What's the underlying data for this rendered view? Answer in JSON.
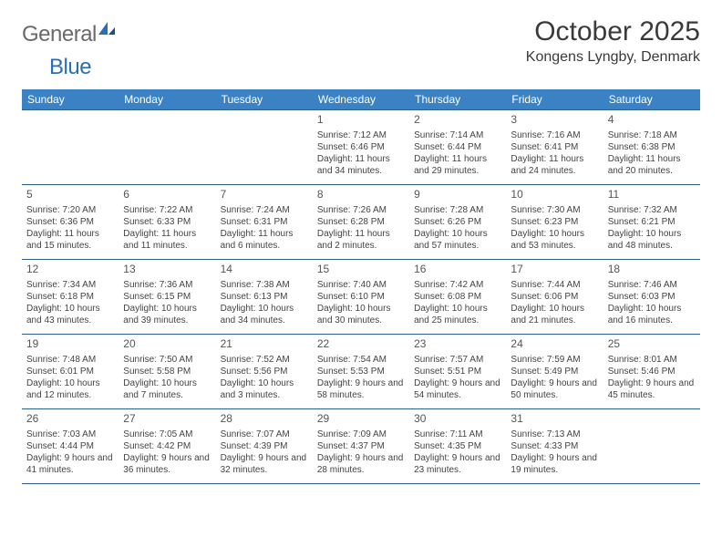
{
  "brand": {
    "name1": "General",
    "name2": "Blue"
  },
  "title": "October 2025",
  "location": "Kongens Lyngby, Denmark",
  "colors": {
    "header_bg": "#3b82c4",
    "header_text": "#ffffff",
    "row_border": "#2f5e8f",
    "text": "#444444",
    "logo_gray": "#6a6a6a",
    "logo_blue": "#2a6fb5"
  },
  "day_headers": [
    "Sunday",
    "Monday",
    "Tuesday",
    "Wednesday",
    "Thursday",
    "Friday",
    "Saturday"
  ],
  "weeks": [
    [
      null,
      null,
      null,
      {
        "n": "1",
        "sr": "7:12 AM",
        "ss": "6:46 PM",
        "dl": "11 hours and 34 minutes."
      },
      {
        "n": "2",
        "sr": "7:14 AM",
        "ss": "6:44 PM",
        "dl": "11 hours and 29 minutes."
      },
      {
        "n": "3",
        "sr": "7:16 AM",
        "ss": "6:41 PM",
        "dl": "11 hours and 24 minutes."
      },
      {
        "n": "4",
        "sr": "7:18 AM",
        "ss": "6:38 PM",
        "dl": "11 hours and 20 minutes."
      }
    ],
    [
      {
        "n": "5",
        "sr": "7:20 AM",
        "ss": "6:36 PM",
        "dl": "11 hours and 15 minutes."
      },
      {
        "n": "6",
        "sr": "7:22 AM",
        "ss": "6:33 PM",
        "dl": "11 hours and 11 minutes."
      },
      {
        "n": "7",
        "sr": "7:24 AM",
        "ss": "6:31 PM",
        "dl": "11 hours and 6 minutes."
      },
      {
        "n": "8",
        "sr": "7:26 AM",
        "ss": "6:28 PM",
        "dl": "11 hours and 2 minutes."
      },
      {
        "n": "9",
        "sr": "7:28 AM",
        "ss": "6:26 PM",
        "dl": "10 hours and 57 minutes."
      },
      {
        "n": "10",
        "sr": "7:30 AM",
        "ss": "6:23 PM",
        "dl": "10 hours and 53 minutes."
      },
      {
        "n": "11",
        "sr": "7:32 AM",
        "ss": "6:21 PM",
        "dl": "10 hours and 48 minutes."
      }
    ],
    [
      {
        "n": "12",
        "sr": "7:34 AM",
        "ss": "6:18 PM",
        "dl": "10 hours and 43 minutes."
      },
      {
        "n": "13",
        "sr": "7:36 AM",
        "ss": "6:15 PM",
        "dl": "10 hours and 39 minutes."
      },
      {
        "n": "14",
        "sr": "7:38 AM",
        "ss": "6:13 PM",
        "dl": "10 hours and 34 minutes."
      },
      {
        "n": "15",
        "sr": "7:40 AM",
        "ss": "6:10 PM",
        "dl": "10 hours and 30 minutes."
      },
      {
        "n": "16",
        "sr": "7:42 AM",
        "ss": "6:08 PM",
        "dl": "10 hours and 25 minutes."
      },
      {
        "n": "17",
        "sr": "7:44 AM",
        "ss": "6:06 PM",
        "dl": "10 hours and 21 minutes."
      },
      {
        "n": "18",
        "sr": "7:46 AM",
        "ss": "6:03 PM",
        "dl": "10 hours and 16 minutes."
      }
    ],
    [
      {
        "n": "19",
        "sr": "7:48 AM",
        "ss": "6:01 PM",
        "dl": "10 hours and 12 minutes."
      },
      {
        "n": "20",
        "sr": "7:50 AM",
        "ss": "5:58 PM",
        "dl": "10 hours and 7 minutes."
      },
      {
        "n": "21",
        "sr": "7:52 AM",
        "ss": "5:56 PM",
        "dl": "10 hours and 3 minutes."
      },
      {
        "n": "22",
        "sr": "7:54 AM",
        "ss": "5:53 PM",
        "dl": "9 hours and 58 minutes."
      },
      {
        "n": "23",
        "sr": "7:57 AM",
        "ss": "5:51 PM",
        "dl": "9 hours and 54 minutes."
      },
      {
        "n": "24",
        "sr": "7:59 AM",
        "ss": "5:49 PM",
        "dl": "9 hours and 50 minutes."
      },
      {
        "n": "25",
        "sr": "8:01 AM",
        "ss": "5:46 PM",
        "dl": "9 hours and 45 minutes."
      }
    ],
    [
      {
        "n": "26",
        "sr": "7:03 AM",
        "ss": "4:44 PM",
        "dl": "9 hours and 41 minutes."
      },
      {
        "n": "27",
        "sr": "7:05 AM",
        "ss": "4:42 PM",
        "dl": "9 hours and 36 minutes."
      },
      {
        "n": "28",
        "sr": "7:07 AM",
        "ss": "4:39 PM",
        "dl": "9 hours and 32 minutes."
      },
      {
        "n": "29",
        "sr": "7:09 AM",
        "ss": "4:37 PM",
        "dl": "9 hours and 28 minutes."
      },
      {
        "n": "30",
        "sr": "7:11 AM",
        "ss": "4:35 PM",
        "dl": "9 hours and 23 minutes."
      },
      {
        "n": "31",
        "sr": "7:13 AM",
        "ss": "4:33 PM",
        "dl": "9 hours and 19 minutes."
      },
      null
    ]
  ],
  "labels": {
    "sunrise": "Sunrise: ",
    "sunset": "Sunset: ",
    "daylight": "Daylight: "
  }
}
